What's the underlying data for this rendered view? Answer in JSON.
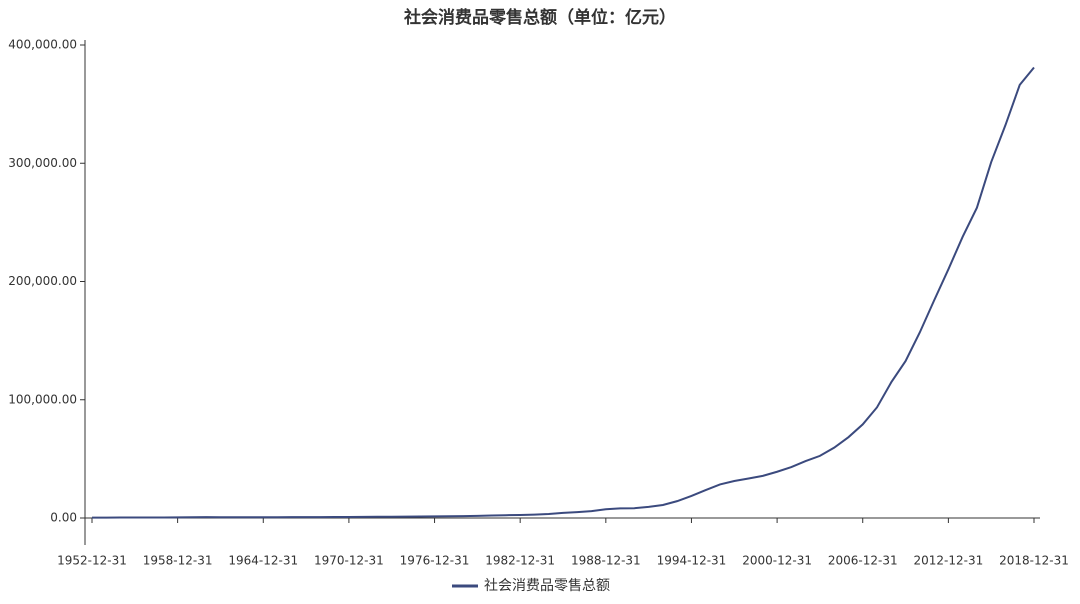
{
  "chart_data": {
    "type": "line",
    "title": "社会消费品零售总额（单位：亿元）",
    "x": [
      "1952-12-31",
      "1953-12-31",
      "1954-12-31",
      "1955-12-31",
      "1956-12-31",
      "1957-12-31",
      "1958-12-31",
      "1959-12-31",
      "1960-12-31",
      "1961-12-31",
      "1962-12-31",
      "1963-12-31",
      "1964-12-31",
      "1965-12-31",
      "1966-12-31",
      "1967-12-31",
      "1968-12-31",
      "1969-12-31",
      "1970-12-31",
      "1971-12-31",
      "1972-12-31",
      "1973-12-31",
      "1974-12-31",
      "1975-12-31",
      "1976-12-31",
      "1977-12-31",
      "1978-12-31",
      "1979-12-31",
      "1980-12-31",
      "1981-12-31",
      "1982-12-31",
      "1983-12-31",
      "1984-12-31",
      "1985-12-31",
      "1986-12-31",
      "1987-12-31",
      "1988-12-31",
      "1989-12-31",
      "1990-12-31",
      "1991-12-31",
      "1992-12-31",
      "1993-12-31",
      "1994-12-31",
      "1995-12-31",
      "1996-12-31",
      "1997-12-31",
      "1998-12-31",
      "1999-12-31",
      "2000-12-31",
      "2001-12-31",
      "2002-12-31",
      "2003-12-31",
      "2004-12-31",
      "2005-12-31",
      "2006-12-31",
      "2007-12-31",
      "2008-12-31",
      "2009-12-31",
      "2010-12-31",
      "2011-12-31",
      "2012-12-31",
      "2013-12-31",
      "2014-12-31",
      "2015-12-31",
      "2016-12-31",
      "2017-12-31",
      "2018-12-31"
    ],
    "series": [
      {
        "name": "社会消费品零售总额",
        "color": "#3b4a7e",
        "values": [
          277,
          348,
          382,
          392,
          461,
          474,
          548,
          638,
          696,
          607,
          604,
          605,
          638,
          670,
          732,
          770,
          737,
          801,
          858,
          929,
          1023,
          1107,
          1164,
          1271,
          1339,
          1433,
          1559,
          1800,
          2140,
          2350,
          2570,
          2849,
          3376,
          4305,
          4950,
          5820,
          7440,
          8101,
          8300,
          9416,
          10994,
          14270,
          18623,
          23614,
          28360,
          31253,
          33378,
          35648,
          39106,
          43055,
          48136,
          52516,
          59501,
          68353,
          79145,
          93572,
          114830,
          132678,
          156998,
          183919,
          210307,
          237810,
          262394,
          300931,
          332316,
          366262,
          380987
        ]
      }
    ],
    "xticks": [
      "1952-12-31",
      "1958-12-31",
      "1964-12-31",
      "1970-12-31",
      "1976-12-31",
      "1982-12-31",
      "1988-12-31",
      "1994-12-31",
      "2000-12-31",
      "2006-12-31",
      "2012-12-31",
      "2018-12-31"
    ],
    "ylim": [
      0,
      400000
    ],
    "yticks": [
      {
        "value": 0,
        "label": "0.00"
      },
      {
        "value": 100000,
        "label": "100,000.00"
      },
      {
        "value": 200000,
        "label": "200,000.00"
      },
      {
        "value": 300000,
        "label": "300,000.00"
      },
      {
        "value": 400000,
        "label": "400,000.00"
      }
    ],
    "legend": "bottom"
  }
}
